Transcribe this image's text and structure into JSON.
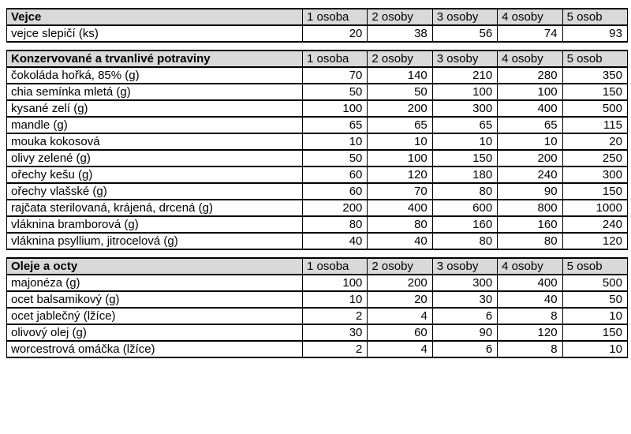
{
  "colors": {
    "header_bg": "#d9d9d9",
    "border": "#000000",
    "text": "#000000",
    "page_bg": "#ffffff"
  },
  "columns": [
    "1 osoba",
    "2 osoby",
    "3 osoby",
    "4 osoby",
    "5 osob"
  ],
  "tables": [
    {
      "title": "Vejce",
      "rows": [
        {
          "label": "vejce slepičí (ks)",
          "values": [
            "20",
            "38",
            "56",
            "74",
            "93"
          ]
        }
      ]
    },
    {
      "title": "Konzervované a trvanlivé potraviny",
      "rows": [
        {
          "label": "čokoláda hořká, 85% (g)",
          "values": [
            "70",
            "140",
            "210",
            "280",
            "350"
          ]
        },
        {
          "label": "chia semínka mletá (g)",
          "values": [
            "50",
            "50",
            "100",
            "100",
            "150"
          ]
        },
        {
          "label": "kysané zelí (g)",
          "values": [
            "100",
            "200",
            "300",
            "400",
            "500"
          ]
        },
        {
          "label": "mandle (g)",
          "values": [
            "65",
            "65",
            "65",
            "65",
            "115"
          ]
        },
        {
          "label": "mouka kokosová",
          "values": [
            "10",
            "10",
            "10",
            "10",
            "20"
          ]
        },
        {
          "label": "olivy zelené (g)",
          "values": [
            "50",
            "100",
            "150",
            "200",
            "250"
          ]
        },
        {
          "label": "ořechy kešu (g)",
          "values": [
            "60",
            "120",
            "180",
            "240",
            "300"
          ]
        },
        {
          "label": "ořechy vlašské (g)",
          "values": [
            "60",
            "70",
            "80",
            "90",
            "150"
          ]
        },
        {
          "label": "rajčata sterilovaná, krájená, drcená (g)",
          "values": [
            "200",
            "400",
            "600",
            "800",
            "1000"
          ]
        },
        {
          "label": "vláknina bramborová (g)",
          "values": [
            "80",
            "80",
            "160",
            "160",
            "240"
          ]
        },
        {
          "label": "vláknina psyllium, jitrocelová (g)",
          "values": [
            "40",
            "40",
            "80",
            "80",
            "120"
          ]
        }
      ]
    },
    {
      "title": "Oleje a octy",
      "rows": [
        {
          "label": "majonéza (g)",
          "values": [
            "100",
            "200",
            "300",
            "400",
            "500"
          ]
        },
        {
          "label": "ocet balsamikový (g)",
          "values": [
            "10",
            "20",
            "30",
            "40",
            "50"
          ]
        },
        {
          "label": "ocet jablečný (lžíce)",
          "values": [
            "2",
            "4",
            "6",
            "8",
            "10"
          ]
        },
        {
          "label": "olivový olej (g)",
          "values": [
            "30",
            "60",
            "90",
            "120",
            "150"
          ]
        },
        {
          "label": "worcestrová omáčka (lžíce)",
          "values": [
            "2",
            "4",
            "6",
            "8",
            "10"
          ]
        }
      ]
    }
  ]
}
